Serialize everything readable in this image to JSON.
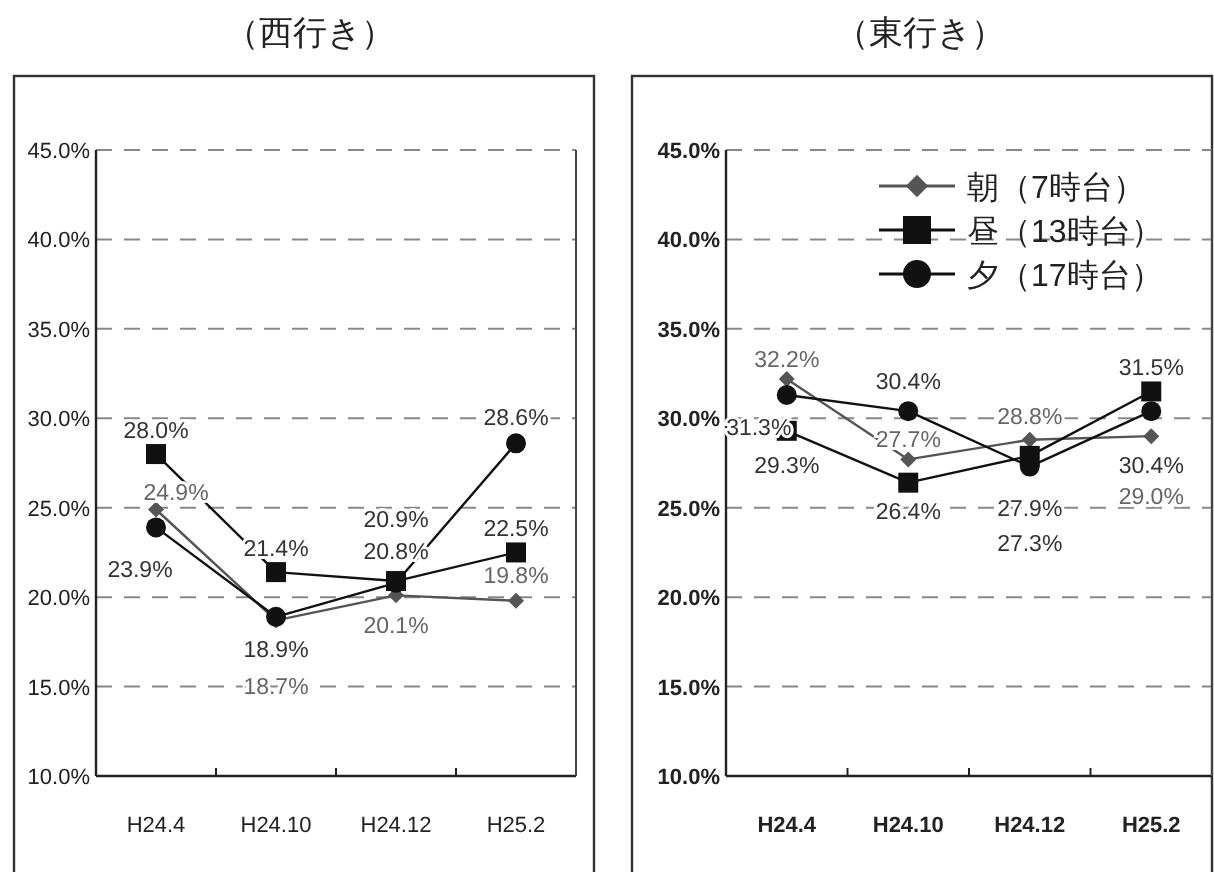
{
  "chart_data": [
    {
      "type": "line",
      "title": "（西行き）",
      "categories": [
        "H24.4",
        "H24.10",
        "H24.12",
        "H25.2"
      ],
      "ylim": [
        10,
        45
      ],
      "yticks": [
        {
          "value": 10,
          "label": "10.0%"
        },
        {
          "value": 15,
          "label": "15.0%"
        },
        {
          "value": 20,
          "label": "20.0%"
        },
        {
          "value": 25,
          "label": "25.0%"
        },
        {
          "value": 30,
          "label": "30.0%"
        },
        {
          "value": 35,
          "label": "35.0%"
        },
        {
          "value": 40,
          "label": "40.0%"
        },
        {
          "value": 45,
          "label": "45.0%"
        }
      ],
      "grid": "y",
      "legend": false,
      "line_style": "solid",
      "series": [
        {
          "color": "#555555",
          "marker": "diamond",
          "values": [
            24.9,
            18.7,
            20.1,
            19.8
          ],
          "value_labels": [
            "24.9%",
            "18.7%",
            "20.1%",
            "19.8%"
          ]
        },
        {
          "color": "#111111",
          "marker": "square",
          "values": [
            28.0,
            21.4,
            20.9,
            22.5
          ],
          "value_labels": [
            "28.0%",
            "21.4%",
            "20.9%",
            "22.5%"
          ]
        },
        {
          "color": "#111111",
          "marker": "circle",
          "values": [
            23.9,
            18.9,
            20.8,
            28.6
          ],
          "value_labels": [
            "23.9%",
            "18.9%",
            "20.8%",
            "28.6%"
          ]
        }
      ]
    },
    {
      "type": "line",
      "title": "（東行き）",
      "categories": [
        "H24.4",
        "H24.10",
        "H24.12",
        "H25.2"
      ],
      "ylim": [
        10,
        45
      ],
      "yticks": [
        {
          "value": 10,
          "label": "10.0%"
        },
        {
          "value": 15,
          "label": "15.0%"
        },
        {
          "value": 20,
          "label": "20.0%"
        },
        {
          "value": 25,
          "label": "25.0%"
        },
        {
          "value": 30,
          "label": "30.0%"
        },
        {
          "value": 35,
          "label": "35.0%"
        },
        {
          "value": 40,
          "label": "40.0%"
        },
        {
          "value": 45,
          "label": "45.0%"
        }
      ],
      "grid": "y",
      "legend": "top",
      "line_style": "solid",
      "series": [
        {
          "name": "朝（7時台）",
          "color": "#555555",
          "marker": "diamond",
          "values": [
            32.2,
            27.7,
            28.8,
            29.0
          ],
          "value_labels": [
            "32.2%",
            "27.7%",
            "28.8%",
            "29.0%"
          ]
        },
        {
          "name": "昼（13時台）",
          "color": "#111111",
          "marker": "square",
          "values": [
            29.3,
            26.4,
            27.9,
            31.5
          ],
          "value_labels": [
            "29.3%",
            "26.4%",
            "27.9%",
            "31.5%"
          ]
        },
        {
          "name": "夕（17時台）",
          "color": "#111111",
          "marker": "circle",
          "values": [
            31.3,
            30.4,
            27.3,
            30.4
          ],
          "value_labels": [
            "31.3%",
            "30.4%",
            "27.3%",
            "30.4%"
          ]
        }
      ]
    }
  ]
}
